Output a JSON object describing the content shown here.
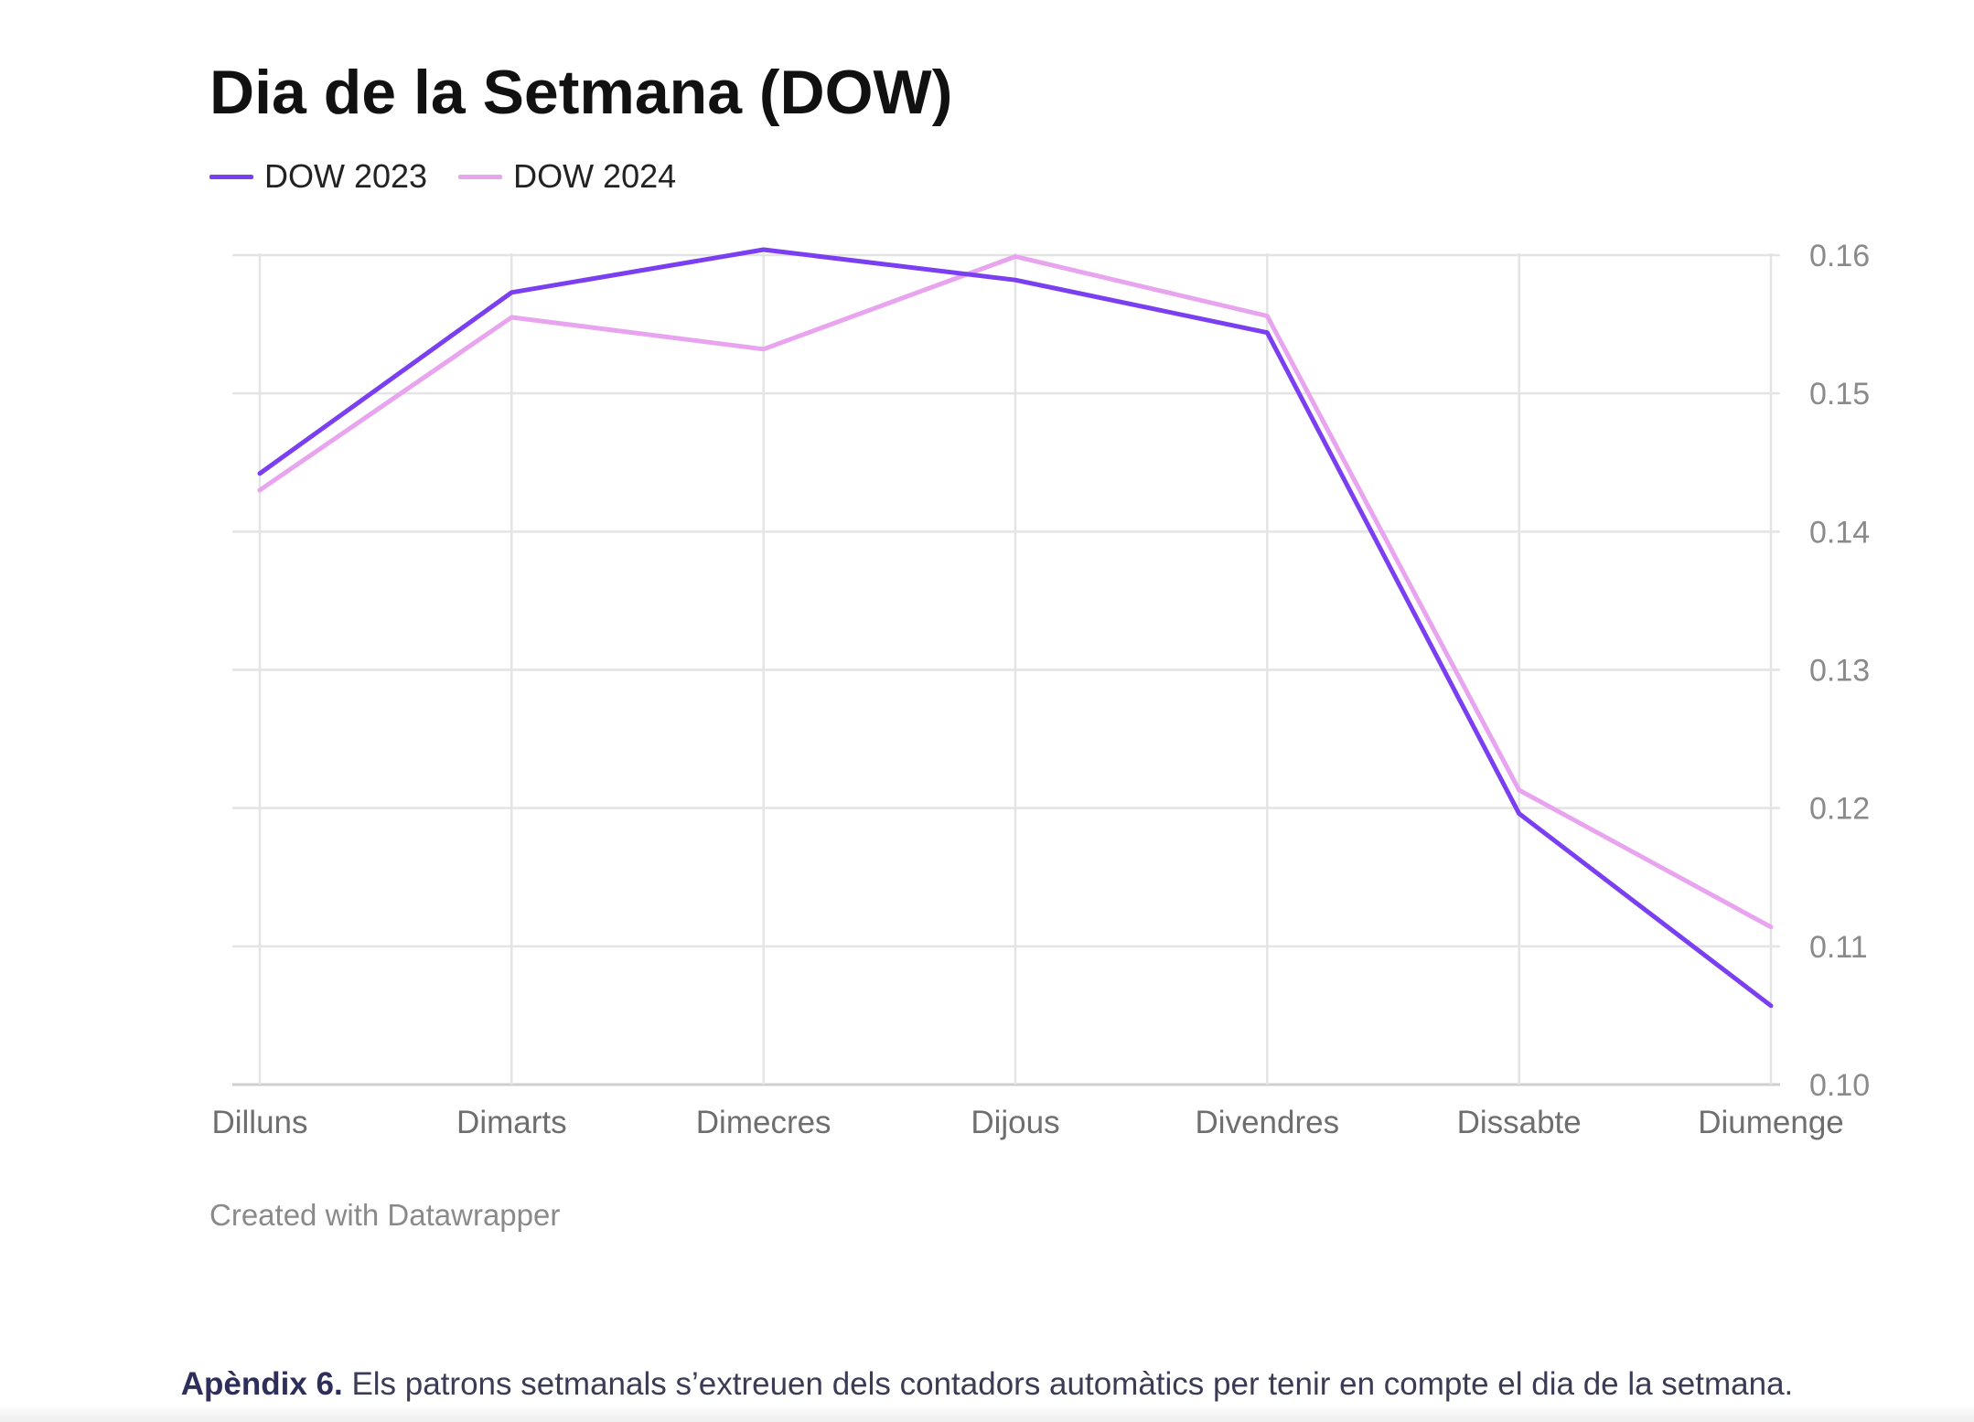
{
  "chart_data": {
    "type": "line",
    "title": "Dia de la Setmana (DOW)",
    "categories": [
      "Dilluns",
      "Dimarts",
      "Dimecres",
      "Dijous",
      "Divendres",
      "Dissabte",
      "Diumenge"
    ],
    "series": [
      {
        "name": "DOW 2023",
        "color": "#7b3ff2",
        "values": [
          0.1442,
          0.1573,
          0.1604,
          0.1582,
          0.1544,
          0.1196,
          0.1057
        ]
      },
      {
        "name": "DOW 2024",
        "color": "#e8a4ee",
        "values": [
          0.143,
          0.1555,
          0.1532,
          0.1599,
          0.1556,
          0.1213,
          0.1114
        ]
      }
    ],
    "yticks": [
      "0.16",
      "0.15",
      "0.14",
      "0.13",
      "0.12",
      "0.11",
      "0.10"
    ],
    "ylim": [
      0.1,
      0.16
    ],
    "y_axis_side": "right",
    "grid": true,
    "legend_position": "top-left",
    "xlabel": "",
    "ylabel": ""
  },
  "credit": "Created with Datawrapper",
  "caption": {
    "label": "Apèndix 6.",
    "text": "Els patrons setmanals s’extreuen dels contadors automàtics per tenir en compte el dia de la setmana."
  }
}
